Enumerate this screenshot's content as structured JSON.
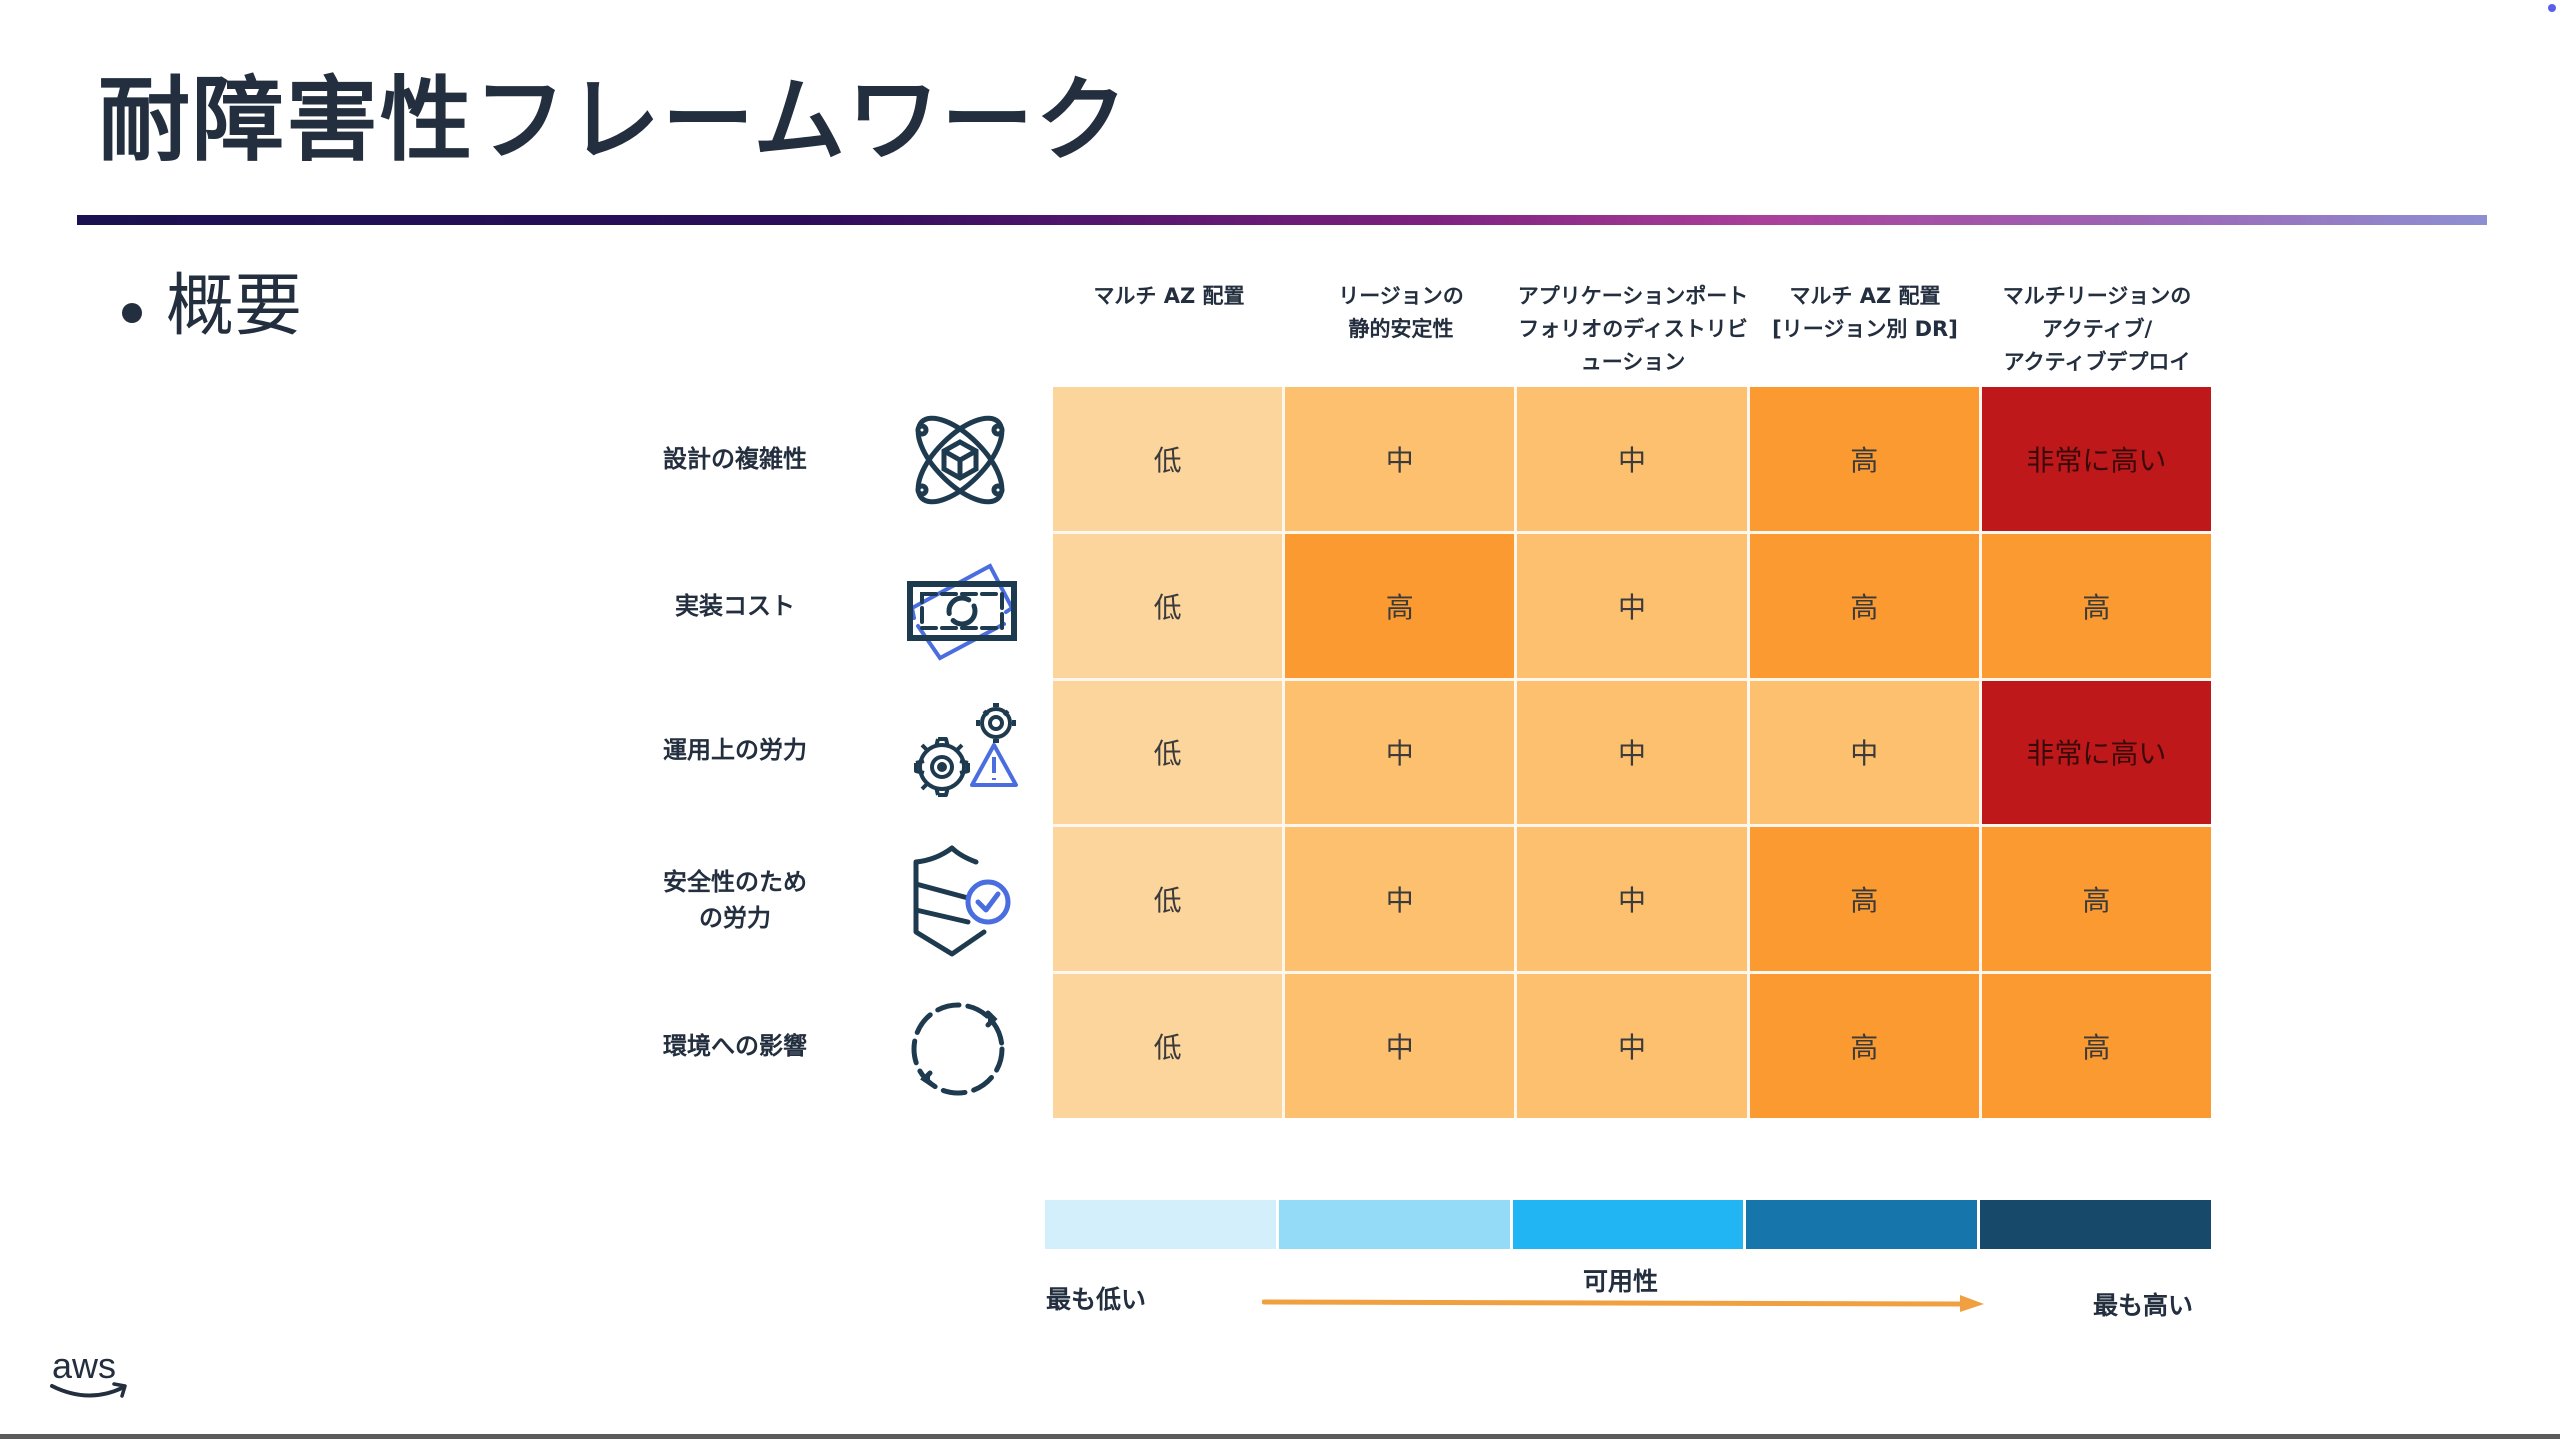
{
  "slide": {
    "title": "耐障害性フレームワーク",
    "bullet": "概要",
    "logo": "aws"
  },
  "colors": {
    "title_text": "#232f3e",
    "divider_gradient": [
      "#1b1150",
      "#7a1f7e",
      "#a9409a",
      "#8e8fd2"
    ],
    "level_low": "#fcd59d",
    "level_mid": "#fcc06e",
    "level_high": "#fb9a30",
    "level_very_high": "#bf181a",
    "arrow": "#f0a040",
    "icon_stroke": "#1e3a4f",
    "icon_accent": "#4a6ee0"
  },
  "matrix": {
    "columns": [
      {
        "lines": [
          "マルチ AZ 配置"
        ]
      },
      {
        "lines": [
          "リージョンの",
          "静的安定性"
        ]
      },
      {
        "lines": [
          "アプリケーションポート",
          "フォリオのディストリビ",
          "ューション"
        ]
      },
      {
        "lines": [
          "マルチ AZ 配置",
          "[リージョン別 DR]"
        ]
      },
      {
        "lines": [
          "マルチリージョンの",
          "アクティブ/",
          "アクティブデプロイ"
        ]
      }
    ],
    "rows": [
      {
        "label_lines": [
          "設計の複雑性"
        ],
        "icon": "atom-cube-icon",
        "cells": [
          {
            "text": "低",
            "level": "low"
          },
          {
            "text": "中",
            "level": "mid"
          },
          {
            "text": "中",
            "level": "mid"
          },
          {
            "text": "高",
            "level": "high"
          },
          {
            "text": "非常に高い",
            "level": "vhigh"
          }
        ]
      },
      {
        "label_lines": [
          "実装コスト"
        ],
        "icon": "banknote-icon",
        "cells": [
          {
            "text": "低",
            "level": "low"
          },
          {
            "text": "高",
            "level": "high"
          },
          {
            "text": "中",
            "level": "mid"
          },
          {
            "text": "高",
            "level": "high"
          },
          {
            "text": "高",
            "level": "high"
          }
        ]
      },
      {
        "label_lines": [
          "運用上の労力"
        ],
        "icon": "gears-warning-icon",
        "cells": [
          {
            "text": "低",
            "level": "low"
          },
          {
            "text": "中",
            "level": "mid"
          },
          {
            "text": "中",
            "level": "mid"
          },
          {
            "text": "中",
            "level": "mid"
          },
          {
            "text": "非常に高い",
            "level": "vhigh"
          }
        ]
      },
      {
        "label_lines": [
          "安全性のため",
          "の労力"
        ],
        "icon": "shield-check-icon",
        "cells": [
          {
            "text": "低",
            "level": "low"
          },
          {
            "text": "中",
            "level": "mid"
          },
          {
            "text": "中",
            "level": "mid"
          },
          {
            "text": "高",
            "level": "high"
          },
          {
            "text": "高",
            "level": "high"
          }
        ]
      },
      {
        "label_lines": [
          "環境への影響"
        ],
        "icon": "cycle-arrows-icon",
        "cells": [
          {
            "text": "低",
            "level": "low"
          },
          {
            "text": "中",
            "level": "mid"
          },
          {
            "text": "中",
            "level": "mid"
          },
          {
            "text": "高",
            "level": "high"
          },
          {
            "text": "高",
            "level": "high"
          }
        ]
      }
    ]
  },
  "legend": {
    "axis_label": "可用性",
    "low_label": "最も低い",
    "high_label": "最も高い",
    "segments": [
      "#d3effb",
      "#94dbf8",
      "#22b5f3",
      "#1676ab",
      "#174a6a"
    ]
  },
  "chart_data": {
    "type": "heatmap",
    "title": "耐障害性フレームワーク",
    "x_categories": [
      "マルチ AZ 配置",
      "リージョンの静的安定性",
      "アプリケーションポートフォリオのディストリビューション",
      "マルチ AZ 配置 [リージョン別 DR]",
      "マルチリージョンのアクティブ/アクティブデプロイ"
    ],
    "y_categories": [
      "設計の複雑性",
      "実装コスト",
      "運用上の労力",
      "安全性のための労力",
      "環境への影響"
    ],
    "values": [
      [
        "低",
        "中",
        "中",
        "高",
        "非常に高い"
      ],
      [
        "低",
        "高",
        "中",
        "高",
        "高"
      ],
      [
        "低",
        "中",
        "中",
        "中",
        "非常に高い"
      ],
      [
        "低",
        "中",
        "中",
        "高",
        "高"
      ],
      [
        "低",
        "中",
        "中",
        "高",
        "高"
      ]
    ],
    "scale": [
      "低",
      "中",
      "高",
      "非常に高い"
    ],
    "xlabel": "可用性",
    "x_range_labels": [
      "最も低い",
      "最も高い"
    ]
  }
}
